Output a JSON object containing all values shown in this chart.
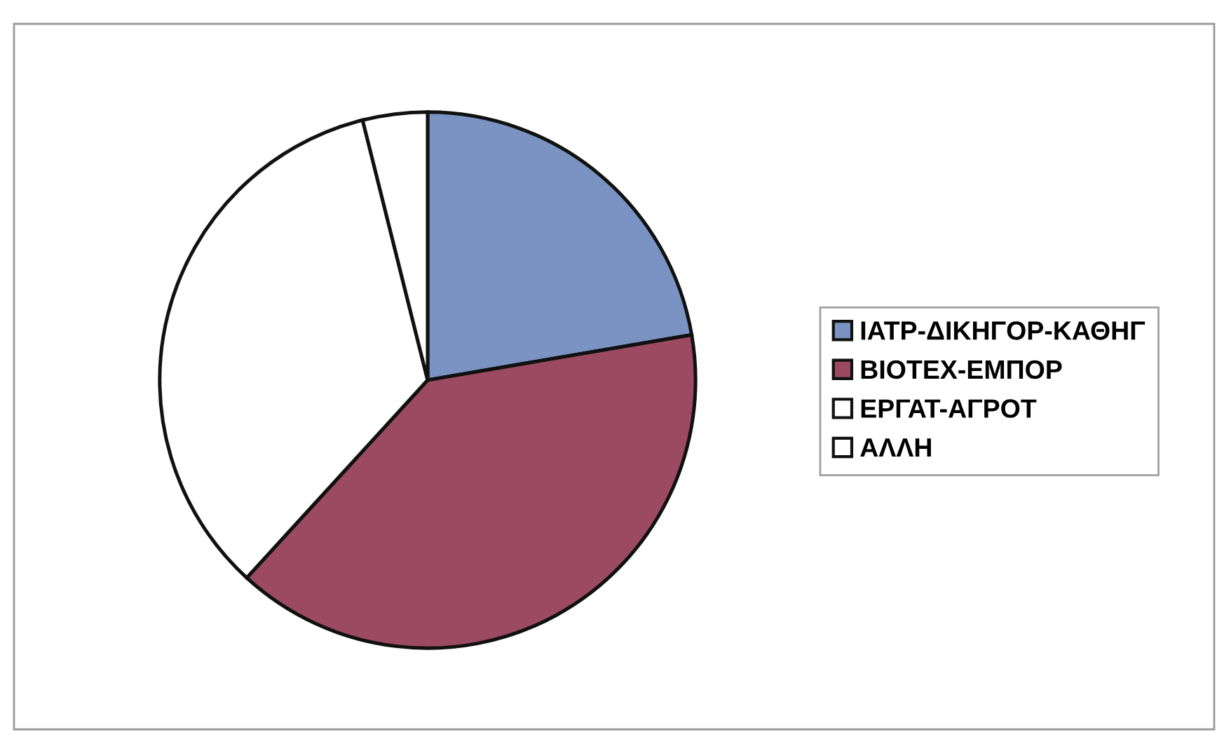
{
  "chart_data": {
    "type": "pie",
    "categories": [
      "ΙΑΤΡ-ΔΙΚΗΓΟΡ-ΚΑΘΗΓ",
      "ΒΙΟΤΕΧ-ΕΜΠΟΡ",
      "ΕΡΓΑΤ-ΑΓΡΟΤ",
      "ΑΛΛΗ"
    ],
    "values": [
      22.3,
      39.5,
      34.3,
      3.9
    ],
    "colors": [
      "#7b93c2",
      "#9c4a63",
      "#ffffff",
      "#ffffff"
    ],
    "legend": "right"
  }
}
